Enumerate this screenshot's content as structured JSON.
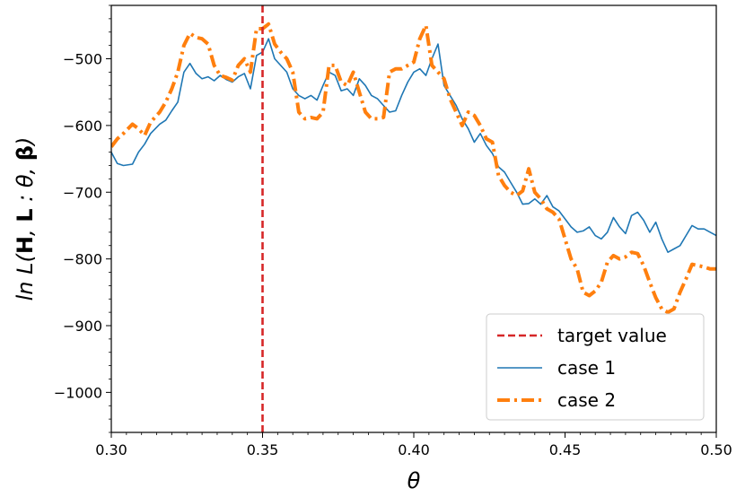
{
  "chart_data": {
    "type": "line",
    "xlabel": "θ",
    "ylabel_parts": [
      "ln L(",
      "H",
      ", ",
      "L",
      " : θ, ",
      "β",
      ")"
    ],
    "xlim": [
      0.3,
      0.5
    ],
    "ylim": [
      -1060,
      -420
    ],
    "x_ticks": [
      0.3,
      0.35,
      0.4,
      0.45,
      0.5
    ],
    "x_tick_labels": [
      "0.30",
      "0.35",
      "0.40",
      "0.45",
      "0.50"
    ],
    "y_ticks": [
      -500,
      -600,
      -700,
      -800,
      -900,
      -1000
    ],
    "y_tick_labels": [
      "−500",
      "−600",
      "−700",
      "−800",
      "−900",
      "−1000"
    ],
    "grid": false,
    "legend_position": "bottom-right",
    "target_value": {
      "name": "target value",
      "x": 0.35,
      "color": "#d62728"
    },
    "series": [
      {
        "name": "case 1",
        "color": "#1f77b4",
        "style": "solid",
        "x": [
          0.3,
          0.302,
          0.304,
          0.307,
          0.309,
          0.311,
          0.313,
          0.316,
          0.318,
          0.32,
          0.322,
          0.324,
          0.326,
          0.328,
          0.33,
          0.332,
          0.334,
          0.336,
          0.338,
          0.34,
          0.342,
          0.344,
          0.346,
          0.348,
          0.35,
          0.352,
          0.354,
          0.356,
          0.358,
          0.36,
          0.362,
          0.364,
          0.366,
          0.368,
          0.37,
          0.372,
          0.374,
          0.376,
          0.378,
          0.38,
          0.382,
          0.384,
          0.386,
          0.388,
          0.39,
          0.392,
          0.394,
          0.396,
          0.398,
          0.4,
          0.402,
          0.404,
          0.406,
          0.408,
          0.41,
          0.412,
          0.414,
          0.416,
          0.418,
          0.42,
          0.422,
          0.424,
          0.426,
          0.428,
          0.43,
          0.432,
          0.434,
          0.436,
          0.438,
          0.44,
          0.442,
          0.444,
          0.446,
          0.448,
          0.45,
          0.452,
          0.454,
          0.456,
          0.458,
          0.46,
          0.462,
          0.464,
          0.466,
          0.468,
          0.47,
          0.472,
          0.474,
          0.476,
          0.478,
          0.48,
          0.482,
          0.484,
          0.486,
          0.488,
          0.49,
          0.492,
          0.494,
          0.496,
          0.498,
          0.5
        ],
        "values": [
          -640,
          -657,
          -660,
          -658,
          -640,
          -628,
          -612,
          -598,
          -592,
          -578,
          -565,
          -520,
          -507,
          -522,
          -530,
          -527,
          -533,
          -525,
          -531,
          -535,
          -527,
          -522,
          -545,
          -495,
          -490,
          -470,
          -500,
          -510,
          -520,
          -545,
          -555,
          -560,
          -555,
          -562,
          -540,
          -520,
          -525,
          -548,
          -545,
          -555,
          -530,
          -540,
          -555,
          -560,
          -570,
          -580,
          -578,
          -555,
          -535,
          -520,
          -515,
          -525,
          -500,
          -478,
          -540,
          -555,
          -570,
          -590,
          -605,
          -625,
          -612,
          -630,
          -642,
          -662,
          -670,
          -685,
          -700,
          -718,
          -717,
          -710,
          -718,
          -705,
          -722,
          -728,
          -740,
          -752,
          -760,
          -758,
          -752,
          -765,
          -770,
          -760,
          -738,
          -752,
          -762,
          -735,
          -730,
          -742,
          -760,
          -745,
          -770,
          -790,
          -785,
          -780,
          -765,
          -750,
          -755,
          -755,
          -760,
          -765
        ]
      },
      {
        "name": "case 2",
        "color": "#ff7f0e",
        "style": "dashdot",
        "x": [
          0.3,
          0.302,
          0.304,
          0.307,
          0.309,
          0.311,
          0.313,
          0.316,
          0.318,
          0.32,
          0.322,
          0.324,
          0.326,
          0.328,
          0.33,
          0.332,
          0.334,
          0.336,
          0.338,
          0.34,
          0.342,
          0.344,
          0.346,
          0.348,
          0.35,
          0.352,
          0.354,
          0.356,
          0.358,
          0.36,
          0.362,
          0.364,
          0.366,
          0.368,
          0.37,
          0.372,
          0.374,
          0.376,
          0.378,
          0.38,
          0.382,
          0.384,
          0.386,
          0.388,
          0.39,
          0.392,
          0.394,
          0.396,
          0.398,
          0.4,
          0.402,
          0.404,
          0.406,
          0.408,
          0.41,
          0.412,
          0.414,
          0.416,
          0.418,
          0.42,
          0.422,
          0.424,
          0.426,
          0.428,
          0.43,
          0.432,
          0.434,
          0.436,
          0.438,
          0.44,
          0.442,
          0.444,
          0.446,
          0.448,
          0.45,
          0.452,
          0.454,
          0.456,
          0.458,
          0.46,
          0.462,
          0.464,
          0.466,
          0.468,
          0.47,
          0.472,
          0.474,
          0.476,
          0.478,
          0.48,
          0.482,
          0.484,
          0.486,
          0.488,
          0.49,
          0.492,
          0.494,
          0.496,
          0.498,
          0.5
        ],
        "values": [
          -632,
          -620,
          -612,
          -598,
          -605,
          -615,
          -595,
          -580,
          -565,
          -545,
          -520,
          -480,
          -462,
          -468,
          -470,
          -478,
          -510,
          -525,
          -528,
          -532,
          -510,
          -500,
          -520,
          -455,
          -455,
          -448,
          -478,
          -490,
          -500,
          -520,
          -580,
          -590,
          -588,
          -590,
          -580,
          -510,
          -510,
          -535,
          -540,
          -520,
          -550,
          -580,
          -590,
          -590,
          -588,
          -520,
          -515,
          -515,
          -510,
          -505,
          -470,
          -450,
          -510,
          -520,
          -530,
          -560,
          -580,
          -600,
          -580,
          -585,
          -600,
          -620,
          -625,
          -675,
          -690,
          -700,
          -705,
          -698,
          -665,
          -700,
          -710,
          -725,
          -730,
          -740,
          -770,
          -800,
          -815,
          -850,
          -855,
          -848,
          -835,
          -805,
          -795,
          -800,
          -797,
          -790,
          -792,
          -810,
          -835,
          -858,
          -875,
          -880,
          -875,
          -850,
          -830,
          -808,
          -810,
          -812,
          -815,
          -815
        ]
      }
    ]
  }
}
